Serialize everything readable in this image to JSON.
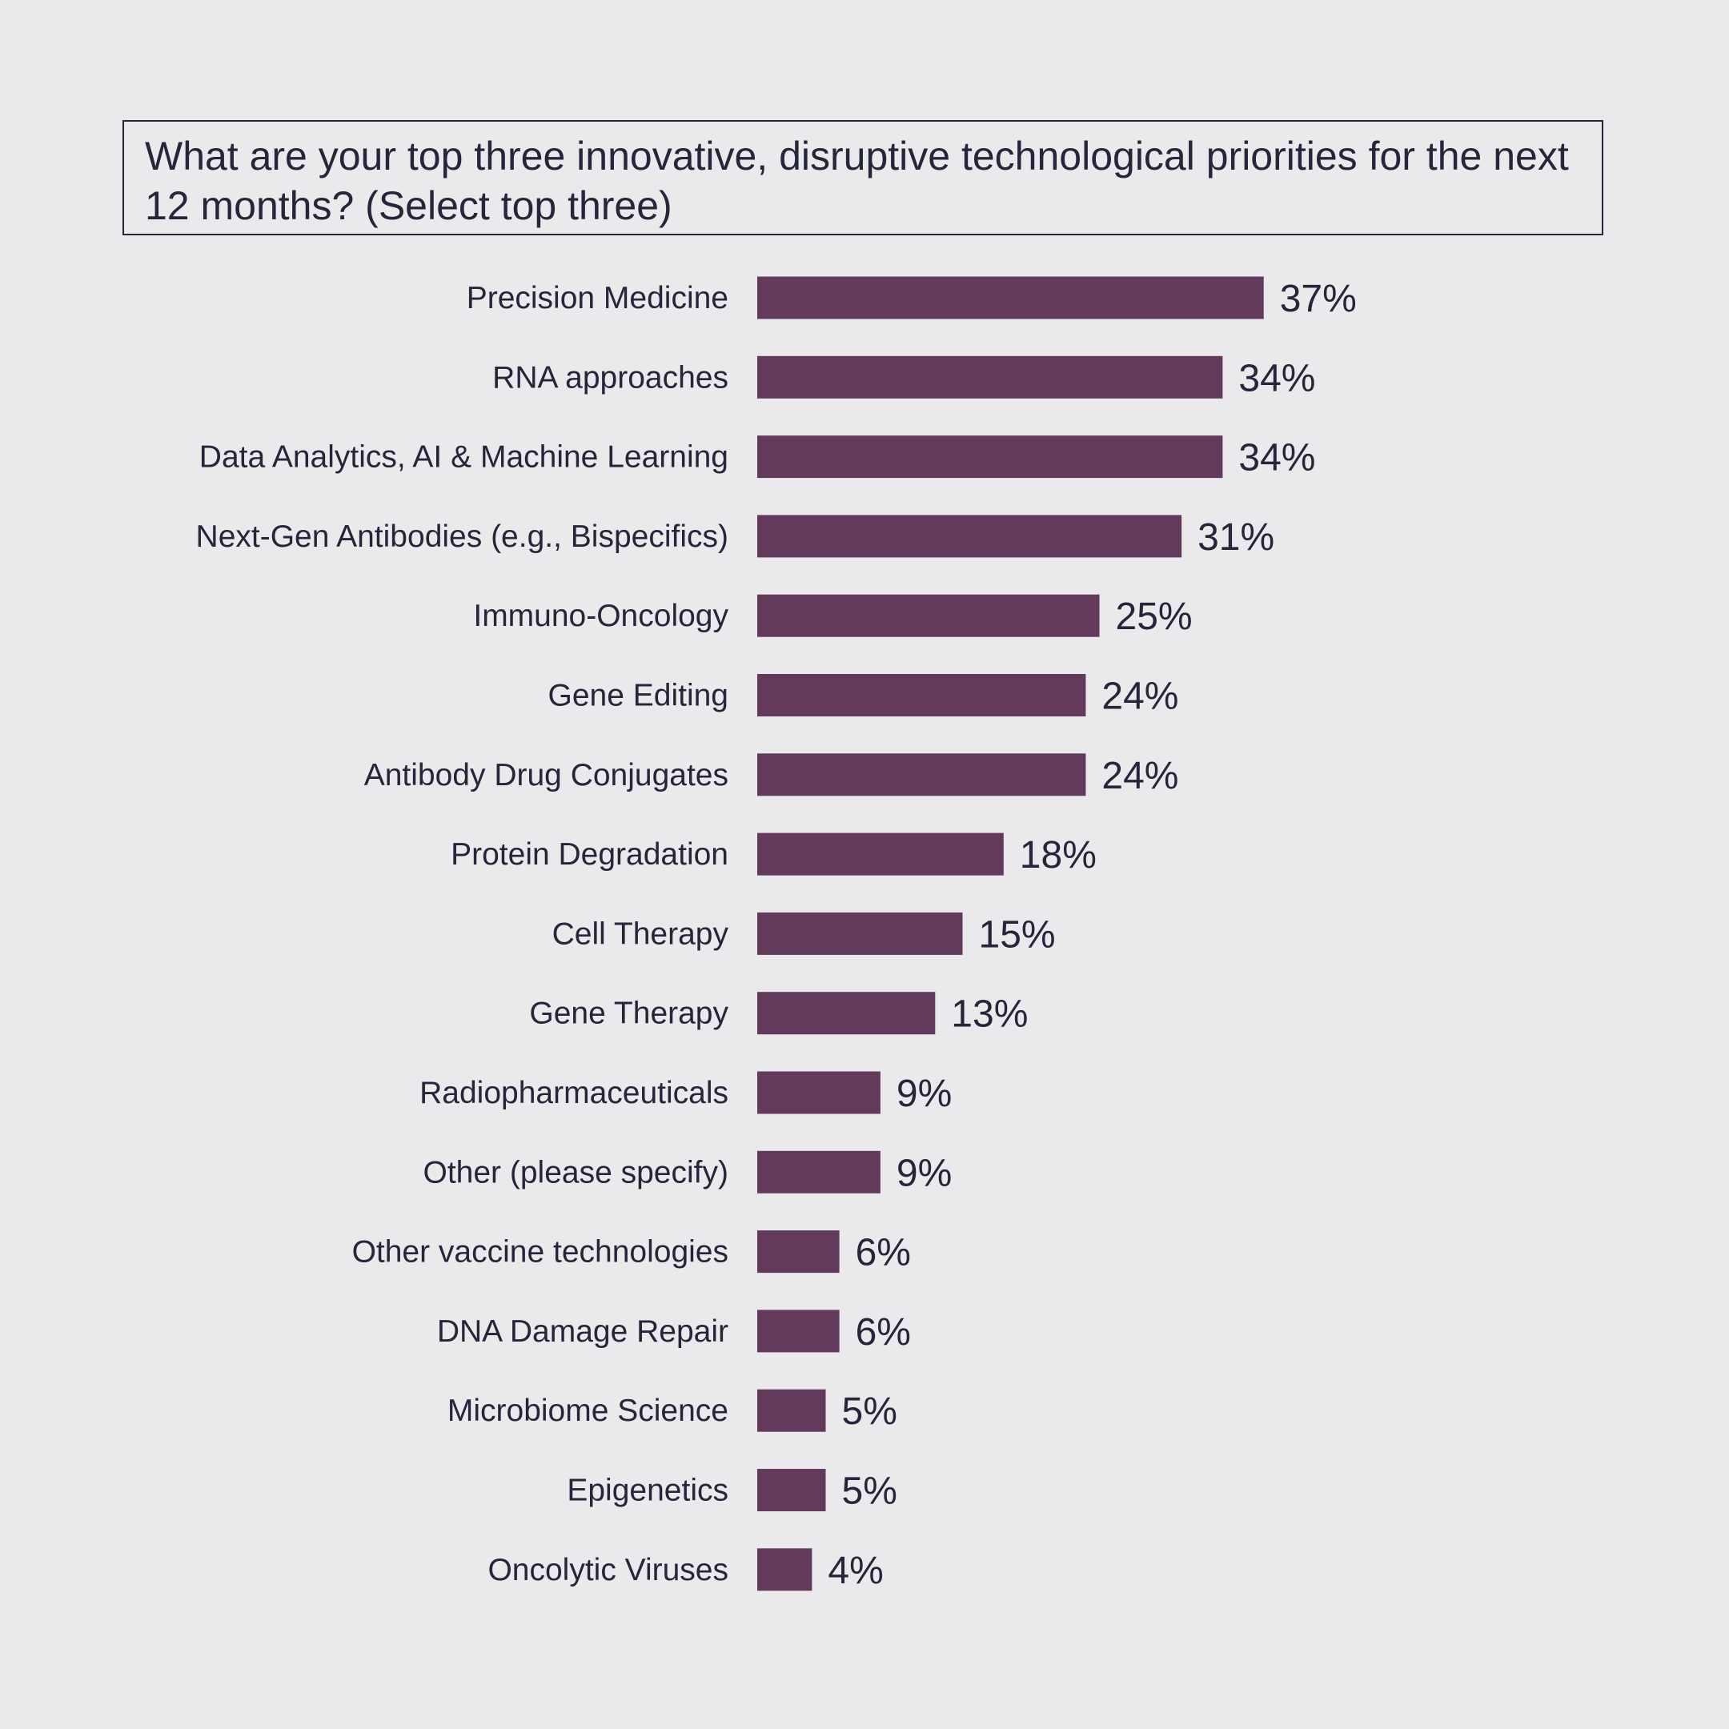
{
  "colors": {
    "bar": "#633a5c",
    "text": "#25263a",
    "background": "#eaeaec"
  },
  "chart_data": {
    "type": "bar",
    "orientation": "horizontal",
    "title": "What are your top three innovative, disruptive technological priorities for the next 12 months? (Select top three)",
    "categories": [
      "Precision Medicine",
      "RNA approaches",
      "Data Analytics, AI & Machine Learning",
      "Next-Gen Antibodies (e.g., Bispecifics)",
      "Immuno-Oncology",
      "Gene Editing",
      "Antibody Drug Conjugates",
      "Protein Degradation",
      "Cell Therapy",
      "Gene Therapy",
      "Radiopharmaceuticals",
      "Other (please specify)",
      "Other vaccine technologies",
      "DNA Damage Repair",
      "Microbiome Science",
      "Epigenetics",
      "Oncolytic Viruses"
    ],
    "values": [
      37,
      34,
      34,
      31,
      25,
      24,
      24,
      18,
      15,
      13,
      9,
      9,
      6,
      6,
      5,
      5,
      4
    ],
    "value_suffix": "%",
    "xlabel": "",
    "ylabel": "",
    "xlim": [
      0,
      40
    ],
    "grid": false
  }
}
